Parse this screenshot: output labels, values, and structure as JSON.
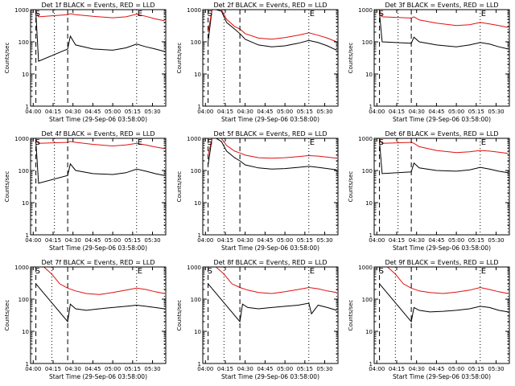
{
  "figure": {
    "title_template": "Det {det} BLACK = Events, RED = LLD",
    "xlabel": "Start Time (29-Sep-06 03:58:00)",
    "ylabel": "Counts/sec"
  },
  "colors": {
    "events": "#000000",
    "lld": "#e01010",
    "axis": "#000000",
    "background": "#ffffff"
  },
  "chart_data": [
    {
      "type": "line",
      "title": "Det 1f BLACK = Events, RED = LLD",
      "xlabel": "Start Time (29-Sep-06 03:58:00)",
      "ylabel": "Counts/sec",
      "y_scale": "log",
      "xlim": [
        "03:58",
        "05:40"
      ],
      "ylim": [
        1,
        1000
      ],
      "x_ticks": [
        "04:00",
        "04:15",
        "04:30",
        "04:45",
        "05:00",
        "05:15",
        "05:30"
      ],
      "y_ticks": [
        "1",
        "10",
        "100",
        "1000"
      ],
      "annotations": [
        "S",
        "E"
      ],
      "markers": {
        "dotted": [
          "04:16",
          "05:18",
          "05:39"
        ],
        "dashed": [
          "04:02",
          "04:26"
        ]
      },
      "series": [
        {
          "name": "Events (BLACK)",
          "x": [
            "04:02",
            "04:04",
            "04:26",
            "04:28",
            "04:32",
            "04:45",
            "05:00",
            "05:10",
            "05:18",
            "05:25",
            "05:32",
            "05:39"
          ],
          "y": [
            800,
            25,
            60,
            150,
            80,
            60,
            55,
            65,
            85,
            70,
            60,
            50
          ]
        },
        {
          "name": "LLD (RED)",
          "x": [
            "04:02",
            "04:04",
            "04:26",
            "04:28",
            "04:32",
            "04:45",
            "05:00",
            "05:10",
            "05:18",
            "05:25",
            "05:32",
            "05:39"
          ],
          "y": [
            900,
            600,
            700,
            750,
            700,
            620,
            560,
            600,
            720,
            620,
            520,
            450
          ]
        }
      ]
    },
    {
      "type": "line",
      "title": "Det 2f BLACK = Events, RED = LLD",
      "xlabel": "Start Time (29-Sep-06 03:58:00)",
      "ylabel": "Counts/sec",
      "y_scale": "log",
      "xlim": [
        "03:58",
        "05:40"
      ],
      "ylim": [
        1,
        1000
      ],
      "x_ticks": [
        "04:00",
        "04:15",
        "04:30",
        "04:45",
        "05:00",
        "05:15",
        "05:30"
      ],
      "y_ticks": [
        "1",
        "10",
        "100",
        "1000"
      ],
      "annotations": [
        "S",
        "E"
      ],
      "markers": {
        "dotted": [
          "04:14",
          "05:18",
          "05:39"
        ],
        "dashed": [
          "04:02",
          "04:26"
        ]
      },
      "series": [
        {
          "name": "Events (BLACK)",
          "x": [
            "04:02",
            "04:05",
            "04:08",
            "04:12",
            "04:16",
            "04:22",
            "04:26",
            "04:30",
            "04:40",
            "04:50",
            "05:00",
            "05:10",
            "05:18",
            "05:25",
            "05:32",
            "05:39"
          ],
          "y": [
            100,
            1000,
            1000,
            900,
            400,
            250,
            180,
            120,
            80,
            70,
            75,
            90,
            110,
            95,
            75,
            55
          ]
        },
        {
          "name": "LLD (RED)",
          "x": [
            "04:02",
            "04:05",
            "04:08",
            "04:12",
            "04:16",
            "04:22",
            "04:26",
            "04:30",
            "04:40",
            "04:50",
            "05:00",
            "05:10",
            "05:18",
            "05:25",
            "05:32",
            "05:39"
          ],
          "y": [
            200,
            1000,
            1000,
            1000,
            500,
            300,
            250,
            180,
            130,
            120,
            135,
            160,
            190,
            160,
            130,
            100
          ]
        }
      ]
    },
    {
      "type": "line",
      "title": "Det 3f BLACK = Events, RED = LLD",
      "xlabel": "Start Time (29-Sep-06 03:58:00)",
      "ylabel": "Counts/sec",
      "y_scale": "log",
      "xlim": [
        "03:58",
        "05:40"
      ],
      "ylim": [
        1,
        1000
      ],
      "x_ticks": [
        "04:00",
        "04:15",
        "04:30",
        "04:45",
        "05:00",
        "05:15",
        "05:30"
      ],
      "y_ticks": [
        "1",
        "10",
        "100",
        "1000"
      ],
      "annotations": [
        "S",
        "E"
      ],
      "markers": {
        "dotted": [
          "04:16",
          "05:18",
          "05:39"
        ],
        "dashed": [
          "04:02",
          "04:26"
        ]
      },
      "series": [
        {
          "name": "Events (BLACK)",
          "x": [
            "04:02",
            "04:04",
            "04:26",
            "04:28",
            "04:32",
            "04:45",
            "05:00",
            "05:10",
            "05:18",
            "05:25",
            "05:32",
            "05:39"
          ],
          "y": [
            800,
            100,
            90,
            140,
            100,
            80,
            70,
            80,
            95,
            85,
            70,
            60
          ]
        },
        {
          "name": "LLD (RED)",
          "x": [
            "04:02",
            "04:04",
            "04:26",
            "04:28",
            "04:32",
            "04:45",
            "05:00",
            "05:10",
            "05:18",
            "05:25",
            "05:32",
            "05:39"
          ],
          "y": [
            900,
            600,
            550,
            600,
            480,
            380,
            320,
            340,
            400,
            360,
            320,
            280
          ]
        }
      ]
    },
    {
      "type": "line",
      "title": "Det 4f BLACK = Events, RED = LLD",
      "xlabel": "Start Time (29-Sep-06 03:58:00)",
      "ylabel": "Counts/sec",
      "y_scale": "log",
      "xlim": [
        "03:58",
        "05:40"
      ],
      "ylim": [
        1,
        1000
      ],
      "x_ticks": [
        "04:00",
        "04:15",
        "04:30",
        "04:45",
        "05:00",
        "05:15",
        "05:30"
      ],
      "y_ticks": [
        "1",
        "10",
        "100",
        "1000"
      ],
      "annotations": [
        "S",
        "E"
      ],
      "markers": {
        "dotted": [
          "04:16",
          "05:18",
          "05:39"
        ],
        "dashed": [
          "04:02",
          "04:26"
        ]
      },
      "series": [
        {
          "name": "Events (BLACK)",
          "x": [
            "04:02",
            "04:04",
            "04:26",
            "04:28",
            "04:32",
            "04:45",
            "05:00",
            "05:10",
            "05:18",
            "05:25",
            "05:32",
            "05:39"
          ],
          "y": [
            800,
            40,
            70,
            160,
            100,
            80,
            75,
            85,
            110,
            95,
            80,
            70
          ]
        },
        {
          "name": "LLD (RED)",
          "x": [
            "04:02",
            "04:04",
            "04:26",
            "04:28",
            "04:32",
            "04:45",
            "05:00",
            "05:10",
            "05:18",
            "05:25",
            "05:32",
            "05:39"
          ],
          "y": [
            900,
            700,
            750,
            800,
            750,
            650,
            580,
            620,
            700,
            620,
            540,
            480
          ]
        }
      ]
    },
    {
      "type": "line",
      "title": "Det 5f BLACK = Events, RED = LLD",
      "xlabel": "Start Time (29-Sep-06 03:58:00)",
      "ylabel": "Counts/sec",
      "y_scale": "log",
      "xlim": [
        "03:58",
        "05:40"
      ],
      "ylim": [
        1,
        1000
      ],
      "x_ticks": [
        "04:00",
        "04:15",
        "04:30",
        "04:45",
        "05:00",
        "05:15",
        "05:30"
      ],
      "y_ticks": [
        "1",
        "10",
        "100",
        "1000"
      ],
      "annotations": [
        "S",
        "E"
      ],
      "markers": {
        "dotted": [
          "04:14",
          "05:18",
          "05:39"
        ],
        "dashed": [
          "04:02",
          "04:26"
        ]
      },
      "series": [
        {
          "name": "Events (BLACK)",
          "x": [
            "04:02",
            "04:05",
            "04:08",
            "04:12",
            "04:16",
            "04:22",
            "04:26",
            "04:30",
            "04:40",
            "04:50",
            "05:00",
            "05:10",
            "05:18",
            "05:25",
            "05:32",
            "05:39"
          ],
          "y": [
            150,
            1000,
            1000,
            800,
            400,
            250,
            200,
            150,
            120,
            110,
            115,
            125,
            135,
            125,
            115,
            105
          ]
        },
        {
          "name": "LLD (RED)",
          "x": [
            "04:02",
            "04:05",
            "04:08",
            "04:12",
            "04:16",
            "04:22",
            "04:26",
            "04:30",
            "04:40",
            "04:50",
            "05:00",
            "05:10",
            "05:18",
            "05:25",
            "05:32",
            "05:39"
          ],
          "y": [
            300,
            1000,
            1000,
            1000,
            600,
            400,
            350,
            300,
            250,
            240,
            250,
            270,
            290,
            280,
            260,
            240
          ]
        }
      ]
    },
    {
      "type": "line",
      "title": "Det 6f BLACK = Events, RED = LLD",
      "xlabel": "Start Time (29-Sep-06 03:58:00)",
      "ylabel": "Counts/sec",
      "y_scale": "log",
      "xlim": [
        "03:58",
        "05:40"
      ],
      "ylim": [
        1,
        1000
      ],
      "x_ticks": [
        "04:00",
        "04:15",
        "04:30",
        "04:45",
        "05:00",
        "05:15",
        "05:30"
      ],
      "y_ticks": [
        "1",
        "10",
        "100",
        "1000"
      ],
      "annotations": [
        "S",
        "E"
      ],
      "markers": {
        "dotted": [
          "04:16",
          "05:18",
          "05:39"
        ],
        "dashed": [
          "04:02",
          "04:26"
        ]
      },
      "series": [
        {
          "name": "Events (BLACK)",
          "x": [
            "04:02",
            "04:04",
            "04:26",
            "04:28",
            "04:32",
            "04:45",
            "05:00",
            "05:10",
            "05:18",
            "05:25",
            "05:32",
            "05:39"
          ],
          "y": [
            800,
            80,
            90,
            170,
            120,
            100,
            95,
            105,
            125,
            110,
            95,
            85
          ]
        },
        {
          "name": "LLD (RED)",
          "x": [
            "04:02",
            "04:04",
            "04:26",
            "04:28",
            "04:32",
            "04:45",
            "05:00",
            "05:10",
            "05:18",
            "05:25",
            "05:32",
            "05:39"
          ],
          "y": [
            900,
            700,
            750,
            700,
            550,
            420,
            360,
            380,
            420,
            400,
            370,
            340
          ]
        }
      ]
    },
    {
      "type": "line",
      "title": "Det 7f BLACK = Events, RED = LLD",
      "xlabel": "Start Time (29-Sep-06 03:58:00)",
      "ylabel": "Counts/sec",
      "y_scale": "log",
      "xlim": [
        "03:58",
        "05:40"
      ],
      "ylim": [
        1,
        1000
      ],
      "x_ticks": [
        "04:00",
        "04:15",
        "04:30",
        "04:45",
        "05:00",
        "05:15",
        "05:30"
      ],
      "y_ticks": [
        "1",
        "10",
        "100",
        "1000"
      ],
      "annotations": [
        "S",
        "E"
      ],
      "markers": {
        "dotted": [
          "04:14",
          "05:18",
          "05:39"
        ],
        "dashed": [
          "04:02",
          "04:26"
        ]
      },
      "series": [
        {
          "name": "Events (BLACK)",
          "x": [
            "04:02",
            "04:26",
            "04:28",
            "04:32",
            "04:40",
            "04:50",
            "05:00",
            "05:10",
            "05:18",
            "05:25",
            "05:32",
            "05:39"
          ],
          "y": [
            300,
            20,
            70,
            50,
            45,
            50,
            55,
            60,
            65,
            60,
            55,
            50
          ]
        },
        {
          "name": "LLD (RED)",
          "x": [
            "04:02",
            "04:08",
            "04:14",
            "04:20",
            "04:26",
            "04:32",
            "04:40",
            "04:50",
            "05:00",
            "05:10",
            "05:18",
            "05:25",
            "05:32",
            "05:39"
          ],
          "y": [
            1000,
            1000,
            600,
            300,
            220,
            180,
            150,
            140,
            160,
            190,
            220,
            200,
            170,
            150
          ]
        }
      ]
    },
    {
      "type": "line",
      "title": "Det 8f BLACK = Events, RED = LLD",
      "xlabel": "Start Time (29-Sep-06 03:58:00)",
      "ylabel": "Counts/sec",
      "y_scale": "log",
      "xlim": [
        "03:58",
        "05:40"
      ],
      "ylim": [
        1,
        1000
      ],
      "x_ticks": [
        "04:00",
        "04:15",
        "04:30",
        "04:45",
        "05:00",
        "05:15",
        "05:30"
      ],
      "y_ticks": [
        "1",
        "10",
        "100",
        "1000"
      ],
      "annotations": [
        "S",
        "E"
      ],
      "markers": {
        "dotted": [
          "04:14",
          "05:18",
          "05:39"
        ],
        "dashed": [
          "04:02",
          "04:26"
        ]
      },
      "series": [
        {
          "name": "Events (BLACK)",
          "x": [
            "04:02",
            "04:26",
            "04:28",
            "04:32",
            "04:40",
            "04:50",
            "05:00",
            "05:10",
            "05:18",
            "05:20",
            "05:25",
            "05:32",
            "05:39"
          ],
          "y": [
            300,
            20,
            70,
            55,
            50,
            55,
            60,
            65,
            75,
            35,
            65,
            55,
            45
          ]
        },
        {
          "name": "LLD (RED)",
          "x": [
            "04:02",
            "04:08",
            "04:14",
            "04:20",
            "04:26",
            "04:32",
            "04:40",
            "04:50",
            "05:00",
            "05:10",
            "05:18",
            "05:25",
            "05:32",
            "05:39"
          ],
          "y": [
            1000,
            1000,
            600,
            300,
            230,
            190,
            160,
            150,
            170,
            200,
            230,
            210,
            180,
            160
          ]
        }
      ]
    },
    {
      "type": "line",
      "title": "Det 9f BLACK = Events, RED = LLD",
      "xlabel": "Start Time (29-Sep-06 03:58:00)",
      "ylabel": "Counts/sec",
      "y_scale": "log",
      "xlim": [
        "03:58",
        "05:40"
      ],
      "ylim": [
        1,
        1000
      ],
      "x_ticks": [
        "04:00",
        "04:15",
        "04:30",
        "04:45",
        "05:00",
        "05:15",
        "05:30"
      ],
      "y_ticks": [
        "1",
        "10",
        "100",
        "1000"
      ],
      "annotations": [
        "S",
        "E"
      ],
      "markers": {
        "dotted": [
          "04:14",
          "05:18",
          "05:39"
        ],
        "dashed": [
          "04:02",
          "04:26"
        ]
      },
      "series": [
        {
          "name": "Events (BLACK)",
          "x": [
            "04:02",
            "04:26",
            "04:28",
            "04:32",
            "04:40",
            "04:50",
            "05:00",
            "05:10",
            "05:18",
            "05:25",
            "05:32",
            "05:39"
          ],
          "y": [
            300,
            20,
            55,
            45,
            40,
            42,
            45,
            50,
            60,
            55,
            45,
            40
          ]
        },
        {
          "name": "LLD (RED)",
          "x": [
            "04:02",
            "04:08",
            "04:14",
            "04:20",
            "04:26",
            "04:32",
            "04:40",
            "04:50",
            "05:00",
            "05:10",
            "05:18",
            "05:25",
            "05:32",
            "05:39"
          ],
          "y": [
            1000,
            1000,
            600,
            300,
            220,
            180,
            160,
            150,
            165,
            190,
            230,
            200,
            170,
            150
          ]
        }
      ]
    }
  ]
}
